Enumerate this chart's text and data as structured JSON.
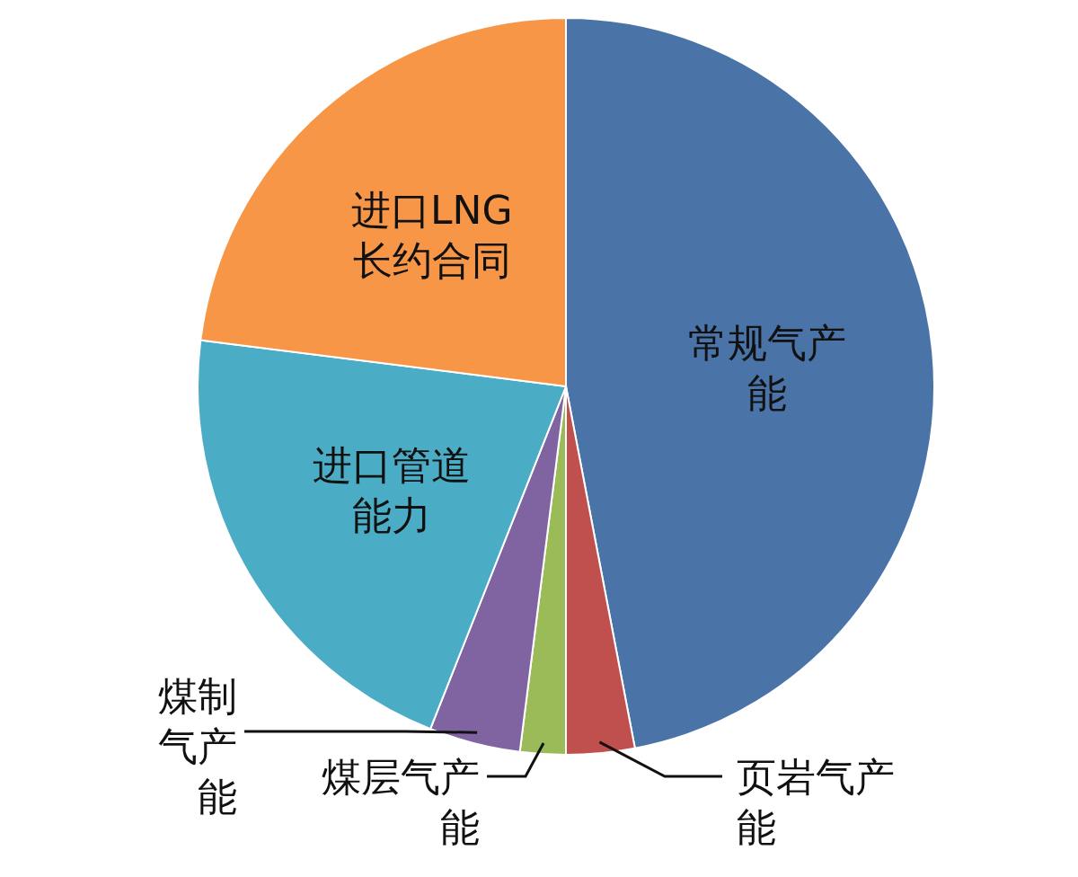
{
  "chart_data": {
    "type": "pie",
    "categories": [
      "常规气产能",
      "页岩气产能",
      "煤层气产能",
      "煤制气产能",
      "进口管道能力",
      "进口LNG长约合同"
    ],
    "values": [
      47,
      3,
      2,
      4,
      21,
      23
    ],
    "colors": [
      "#4a73a8",
      "#c0504d",
      "#9bbb59",
      "#8064a2",
      "#4bacc6",
      "#f79646"
    ]
  }
}
